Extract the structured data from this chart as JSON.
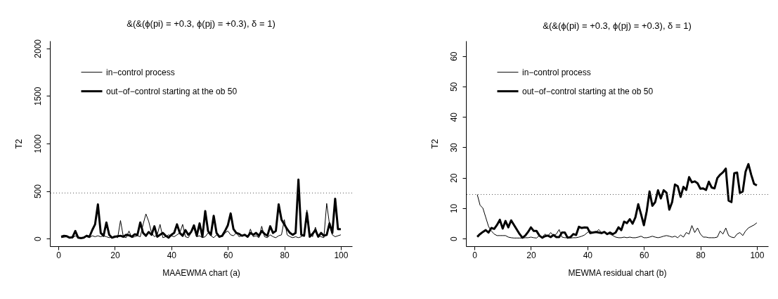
{
  "chart_data": [
    {
      "type": "line",
      "title": "&(&(ϕ(pi) = +0.3, ϕ(pj) = +0.3), δ = 1)",
      "xlabel": "MAAEWMA chart (a)",
      "ylabel": "T2",
      "x": [
        1,
        2,
        3,
        4,
        5,
        6,
        7,
        8,
        9,
        10,
        11,
        12,
        13,
        14,
        15,
        16,
        17,
        18,
        19,
        20,
        21,
        22,
        23,
        24,
        25,
        26,
        27,
        28,
        29,
        30,
        31,
        32,
        33,
        34,
        35,
        36,
        37,
        38,
        39,
        40,
        41,
        42,
        43,
        44,
        45,
        46,
        47,
        48,
        49,
        50,
        51,
        52,
        53,
        54,
        55,
        56,
        57,
        58,
        59,
        60,
        61,
        62,
        63,
        64,
        65,
        66,
        67,
        68,
        69,
        70,
        71,
        72,
        73,
        74,
        75,
        76,
        77,
        78,
        79,
        80,
        81,
        82,
        83,
        84,
        85,
        86,
        87,
        88,
        89,
        90,
        91,
        92,
        93,
        94,
        95,
        96,
        97,
        98,
        99,
        100
      ],
      "series": [
        {
          "name": "in−control process",
          "color": "#000000",
          "values": [
            10,
            15,
            20,
            10,
            5,
            30,
            10,
            5,
            15,
            20,
            10,
            30,
            20,
            30,
            20,
            30,
            20,
            10,
            15,
            30,
            10,
            190,
            20,
            10,
            80,
            10,
            20,
            30,
            20,
            150,
            260,
            180,
            60,
            20,
            40,
            150,
            10,
            20,
            40,
            30,
            20,
            40,
            60,
            150,
            20,
            10,
            60,
            110,
            20,
            30,
            10,
            20,
            60,
            30,
            10,
            40,
            20,
            20,
            60,
            80,
            40,
            30,
            60,
            20,
            30,
            40,
            10,
            100,
            20,
            30,
            10,
            130,
            20,
            10,
            40,
            20,
            10,
            30,
            40,
            200,
            40,
            20,
            10,
            20,
            10,
            20,
            40,
            300,
            60,
            20,
            120,
            30,
            20,
            10,
            370,
            150,
            40,
            20,
            30,
            40
          ]
        },
        {
          "name": "out−of−control starting at the ob 50",
          "color": "#000000",
          "values": [
            20,
            30,
            25,
            10,
            15,
            80,
            10,
            5,
            10,
            30,
            20,
            90,
            150,
            360,
            60,
            30,
            170,
            40,
            10,
            20,
            25,
            30,
            20,
            40,
            35,
            20,
            45,
            40,
            170,
            60,
            30,
            70,
            40,
            130,
            20,
            40,
            60,
            30,
            10,
            40,
            60,
            150,
            60,
            30,
            90,
            40,
            70,
            140,
            30,
            160,
            20,
            290,
            80,
            40,
            240,
            60,
            20,
            30,
            80,
            140,
            265,
            100,
            60,
            50,
            30,
            40,
            20,
            60,
            40,
            60,
            30,
            80,
            50,
            30,
            130,
            60,
            80,
            360,
            200,
            150,
            100,
            60,
            40,
            60,
            620,
            40,
            30,
            270,
            20,
            50,
            90,
            20,
            60,
            30,
            40,
            160,
            60,
            420,
            100,
            100
          ]
        }
      ],
      "xlim": [
        -3,
        104
      ],
      "xticks": [
        0,
        20,
        40,
        60,
        80,
        100
      ],
      "ylim": [
        -80,
        2080
      ],
      "yticks": [
        0,
        500,
        1000,
        1500,
        2000
      ],
      "ref_lines": [
        {
          "axis": "y",
          "value": 480,
          "color": "#555555",
          "line_style": "dotted"
        }
      ],
      "grid": false,
      "legend": "top"
    },
    {
      "type": "line",
      "title": "&(&(ϕ(pi) = +0.3, ϕ(pj) = +0.3), δ = 1)",
      "xlabel": "MEWMA residual chart (b)",
      "ylabel": "T2",
      "x": [
        1,
        2,
        3,
        4,
        5,
        6,
        7,
        8,
        9,
        10,
        11,
        12,
        13,
        14,
        15,
        16,
        17,
        18,
        19,
        20,
        21,
        22,
        23,
        24,
        25,
        26,
        27,
        28,
        29,
        30,
        31,
        32,
        33,
        34,
        35,
        36,
        37,
        38,
        39,
        40,
        41,
        42,
        43,
        44,
        45,
        46,
        47,
        48,
        49,
        50,
        51,
        52,
        53,
        54,
        55,
        56,
        57,
        58,
        59,
        60,
        61,
        62,
        63,
        64,
        65,
        66,
        67,
        68,
        69,
        70,
        71,
        72,
        73,
        74,
        75,
        76,
        77,
        78,
        79,
        80,
        81,
        82,
        83,
        84,
        85,
        86,
        87,
        88,
        89,
        90,
        91,
        92,
        93,
        94,
        95,
        96,
        97,
        98,
        99,
        100
      ],
      "series": [
        {
          "name": "in−control process",
          "color": "#000000",
          "values": [
            14.5,
            11,
            10,
            7,
            4,
            2.5,
            1.5,
            1,
            1,
            1,
            1,
            0.5,
            0.3,
            0.2,
            0.2,
            0.2,
            0.2,
            0.3,
            0.3,
            0.5,
            0.3,
            0.2,
            1,
            0.5,
            1.5,
            0.8,
            2,
            1,
            1.5,
            3,
            0.5,
            0.3,
            0.3,
            0.2,
            0.3,
            0.3,
            0.5,
            0.8,
            1.2,
            2,
            2.5,
            2,
            2,
            3,
            2,
            2,
            1.5,
            1.5,
            1,
            0.5,
            0.3,
            0.3,
            0.5,
            0.3,
            0.5,
            0.3,
            0.3,
            0.5,
            0.8,
            0.3,
            0.3,
            0.5,
            0.8,
            0.5,
            0.3,
            0.5,
            0.8,
            1,
            0.8,
            0.5,
            0.8,
            0.3,
            1.2,
            0.5,
            2,
            1.5,
            4.3,
            2,
            3.5,
            1.5,
            0.5,
            0.5,
            0.3,
            0.3,
            0.3,
            0.5,
            2.5,
            1.5,
            3.5,
            1,
            0.5,
            0.3,
            1.5,
            2,
            1,
            2.5,
            3.5,
            4,
            4.5,
            5.2
          ]
        },
        {
          "name": "out−of−control starting at the ob 50",
          "color": "#000000",
          "values": [
            0.6,
            1.5,
            2.2,
            2.8,
            2,
            3.5,
            3.2,
            4.5,
            6.2,
            3.3,
            5.8,
            3.7,
            6,
            4.5,
            3,
            1.5,
            0.3,
            1,
            2.2,
            3.7,
            2.5,
            2.5,
            1,
            0.3,
            0.8,
            1,
            0.5,
            1.2,
            0.5,
            0.5,
            2,
            2,
            0.3,
            0.5,
            1.5,
            1.2,
            3.9,
            3.5,
            3.7,
            3.6,
            1.8,
            2,
            2.2,
            2,
            1.8,
            2.2,
            1.5,
            2,
            1.5,
            2,
            3.7,
            2.8,
            5.6,
            5.1,
            6.4,
            4.9,
            7,
            11.3,
            8,
            4.4,
            9,
            15.5,
            10.8,
            12,
            15.9,
            13.2,
            15.9,
            15.1,
            9.5,
            12,
            17.8,
            17.2,
            13.7,
            17,
            16,
            20.2,
            18.5,
            18.8,
            18.2,
            16.4,
            16.5,
            16,
            18.7,
            16.8,
            16.5,
            19.9,
            21,
            21.8,
            23,
            12.5,
            12,
            21.5,
            21.7,
            15,
            15.5,
            22,
            24.5,
            21,
            18,
            17.5
          ]
        }
      ],
      "xlim": [
        -3,
        104
      ],
      "xticks": [
        0,
        20,
        40,
        60,
        80,
        100
      ],
      "ylim": [
        -2.5,
        65
      ],
      "yticks": [
        0,
        10,
        20,
        30,
        40,
        50,
        60
      ],
      "ref_lines": [
        {
          "axis": "y",
          "value": 14.5,
          "color": "#555555",
          "line_style": "dotted"
        }
      ],
      "grid": false,
      "legend": "top"
    }
  ]
}
